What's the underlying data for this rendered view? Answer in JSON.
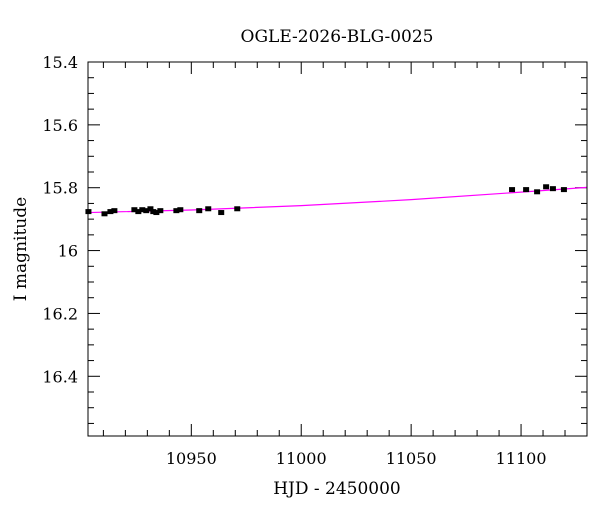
{
  "chart_data": {
    "type": "scatter",
    "title": "OGLE-2026-BLG-0025",
    "xlabel": "HJD - 2450000",
    "ylabel": "I magnitude",
    "xlim": [
      10903,
      11130
    ],
    "ylim": [
      15.4,
      16.59
    ],
    "y_inverted": true,
    "grid": false,
    "x_ticks": [
      10950,
      11000,
      11050,
      11100
    ],
    "y_ticks": [
      15.4,
      15.6,
      15.8,
      16,
      16.2,
      16.4
    ],
    "points": {
      "x": [
        10903.2,
        10910.5,
        10913.2,
        10915.0,
        10924.1,
        10925.9,
        10927.7,
        10929.5,
        10931.4,
        10932.7,
        10934.1,
        10935.9,
        10943.2,
        10945.0,
        10953.6,
        10957.7,
        10963.6,
        10970.9,
        11095.9,
        11102.3,
        11107.3,
        11111.4,
        11114.5,
        11119.5
      ],
      "y": [
        15.876,
        15.883,
        15.876,
        15.873,
        15.87,
        15.876,
        15.87,
        15.873,
        15.867,
        15.876,
        15.879,
        15.873,
        15.873,
        15.87,
        15.873,
        15.867,
        15.879,
        15.867,
        15.806,
        15.806,
        15.813,
        15.797,
        15.803,
        15.806
      ],
      "err": 0.006,
      "color": "#000000"
    },
    "model": {
      "x": [
        10903,
        10950,
        11000,
        11050,
        11100,
        11130
      ],
      "y": [
        15.879,
        15.871,
        15.857,
        15.838,
        15.814,
        15.799
      ],
      "color": "#ff00ff"
    }
  }
}
